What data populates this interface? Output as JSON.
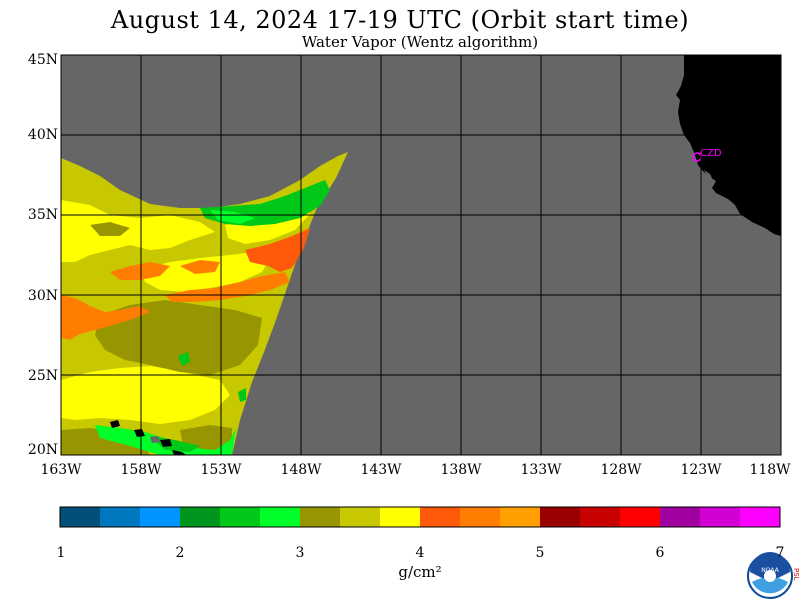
{
  "title": "August 14, 2024  17-19 UTC  (Orbit start time)",
  "subtitle": "Water Vapor (Wentz algorithm)",
  "lat_labels": [
    "45N",
    "40N",
    "35N",
    "30N",
    "25N",
    "20N"
  ],
  "lon_labels": [
    "163W",
    "158W",
    "153W",
    "148W",
    "143W",
    "138W",
    "133W",
    "128W",
    "123W",
    "118W"
  ],
  "station_label": "CZD",
  "colorbar": {
    "tick_labels": [
      "1",
      "2",
      "3",
      "4",
      "5",
      "6",
      "7"
    ],
    "unit": "g/cm²",
    "colors": [
      "#00507a",
      "#0078c0",
      "#0095ff",
      "#00961e",
      "#00c818",
      "#00ff28",
      "#989600",
      "#c8c800",
      "#ffff00",
      "#ff5a0a",
      "#ff7d00",
      "#ffa000",
      "#9b0000",
      "#c80000",
      "#ff0000",
      "#a000a0",
      "#d200d2",
      "#ff00ff"
    ]
  },
  "colors": {
    "ocean_missing": "#666666",
    "land": "#000000",
    "grid": "#000000",
    "station": "#ff00ff"
  },
  "logo_text": "NOAA",
  "logo_side_text": "PSL"
}
